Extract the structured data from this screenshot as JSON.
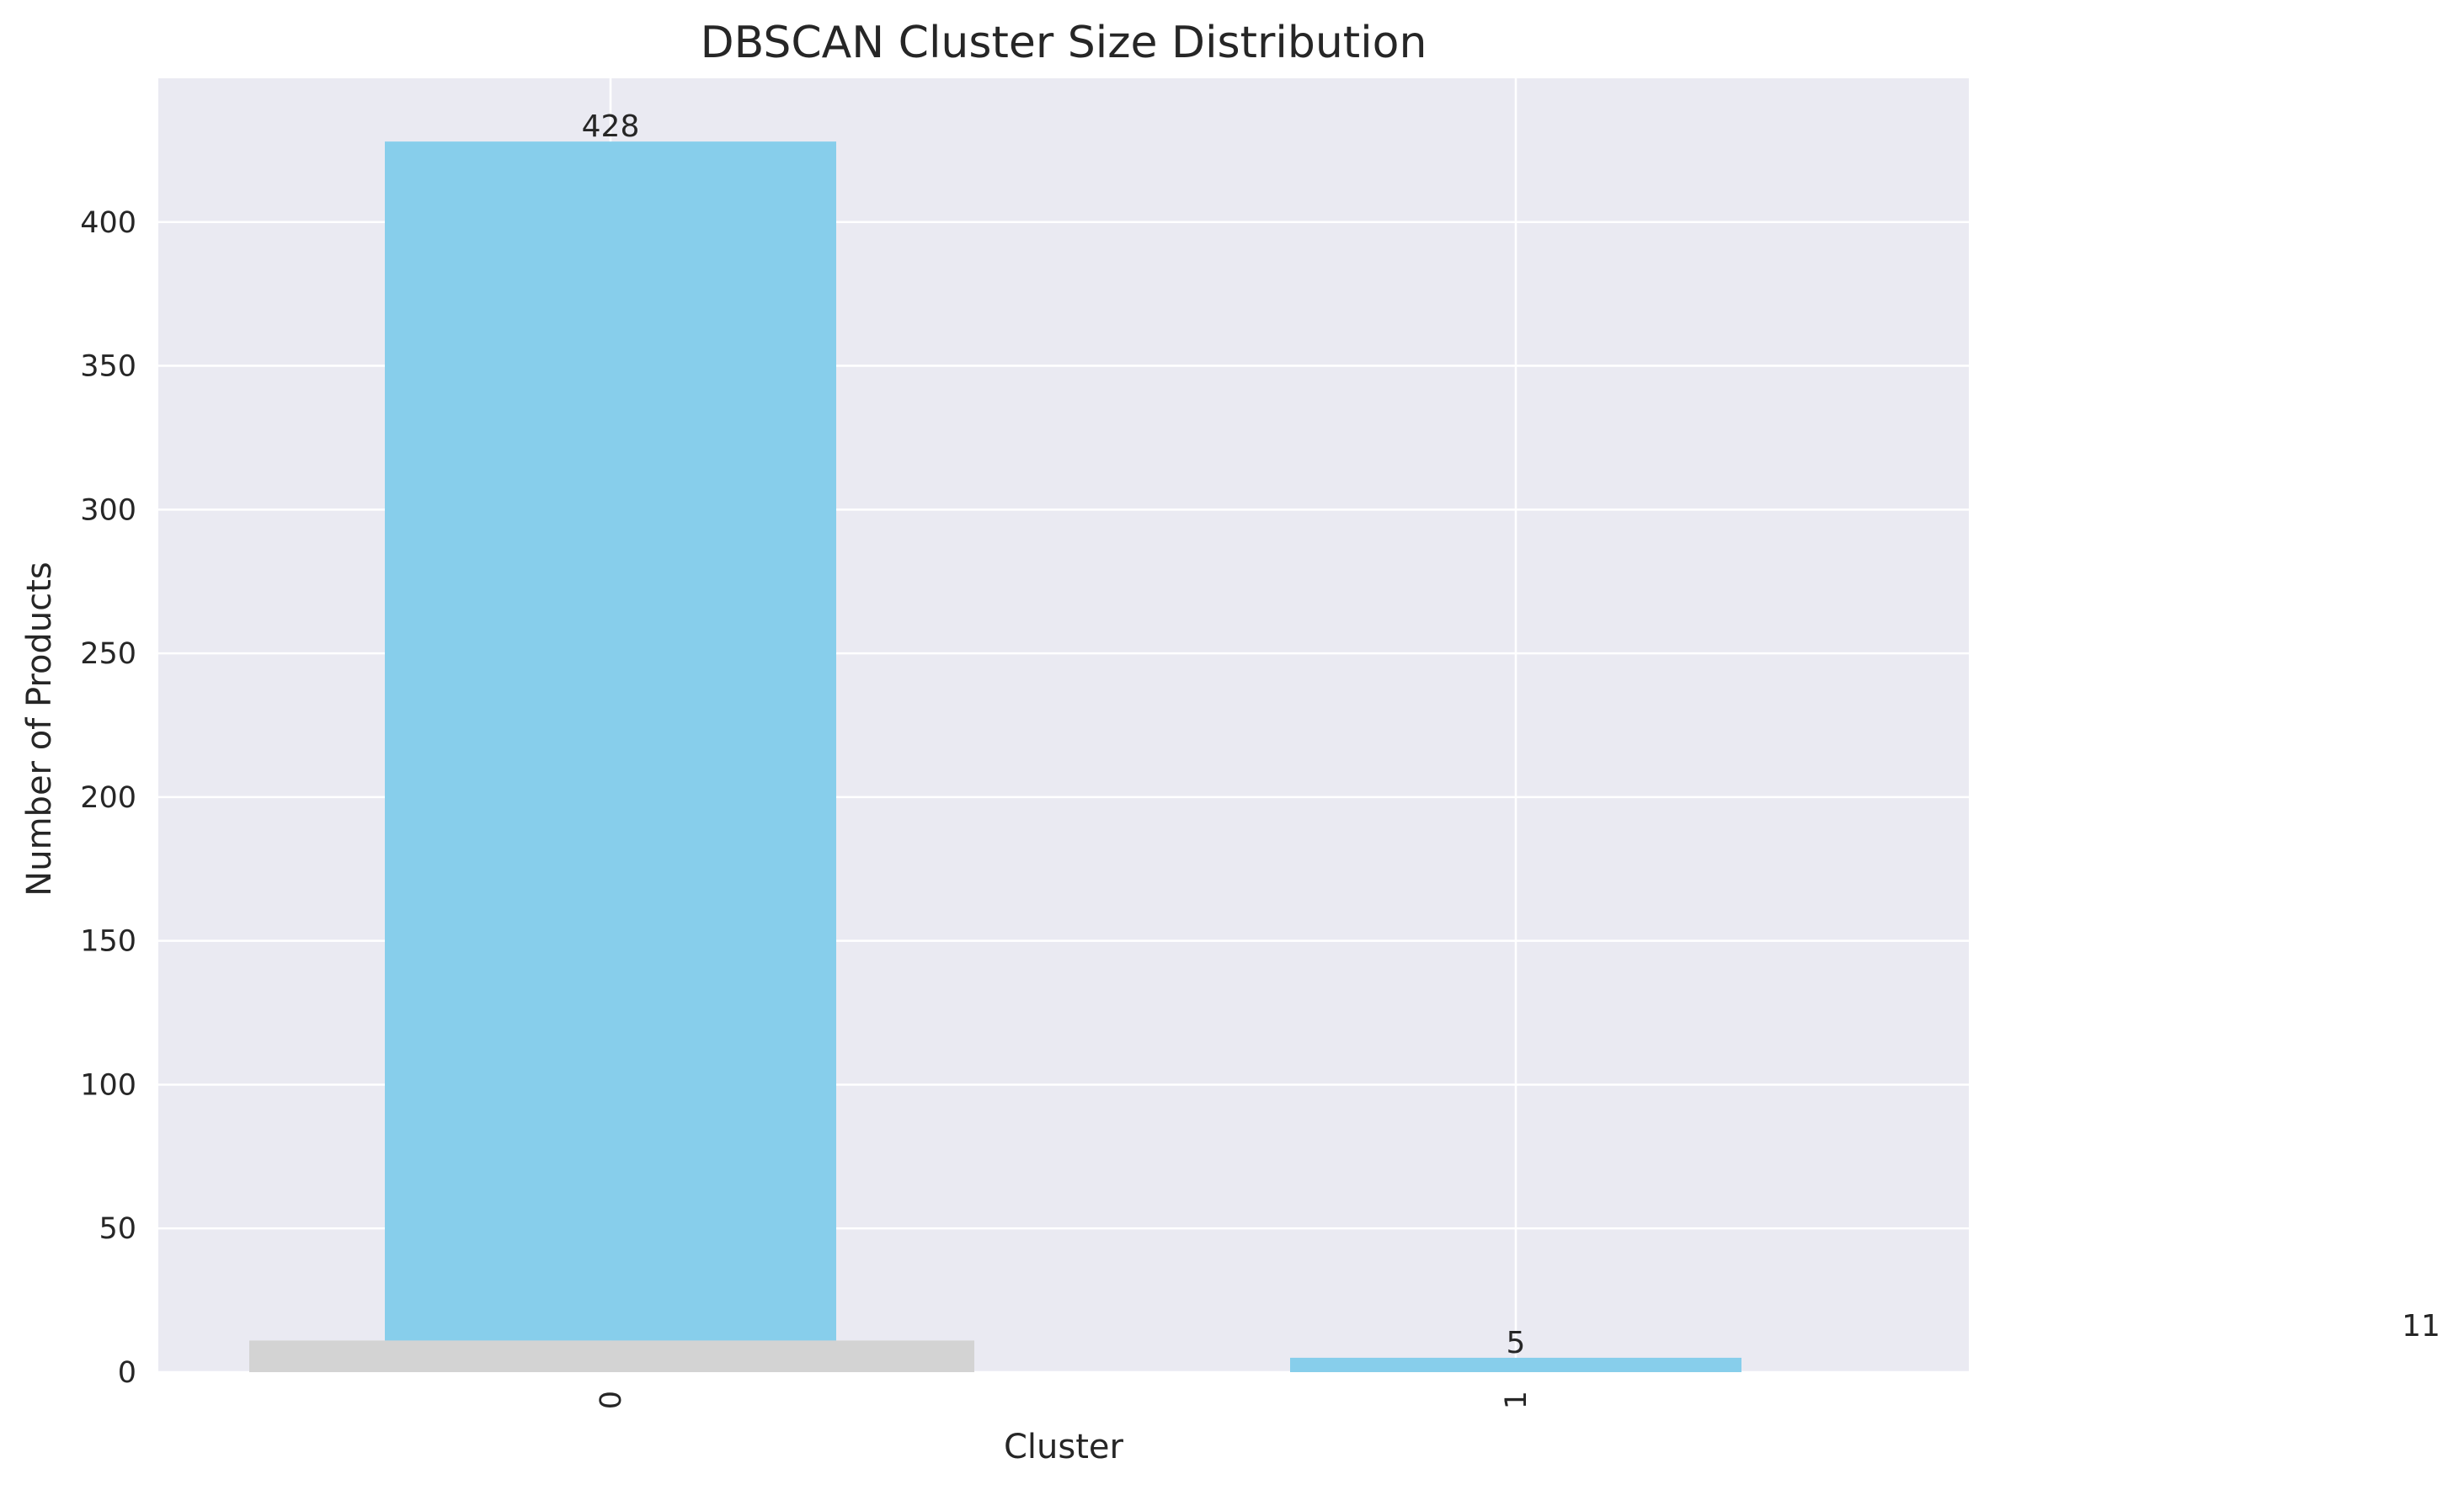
{
  "chart_data": {
    "type": "bar",
    "title": "DBSCAN Cluster Size Distribution",
    "xlabel": "Cluster",
    "ylabel": "Number of Products",
    "categories": [
      "0",
      "1"
    ],
    "values": [
      428,
      5
    ],
    "bar_color": "#87ceeb",
    "background_bar": {
      "value": 11,
      "color": "#d3d3d3"
    },
    "stray_label": "11",
    "ylim": [
      0,
      450
    ],
    "yticks": [
      0,
      50,
      100,
      150,
      200,
      250,
      300,
      350,
      400
    ],
    "ytick_labels": [
      "0",
      "50",
      "100",
      "150",
      "200",
      "250",
      "300",
      "350",
      "400"
    ],
    "grid": true,
    "plot_background": "#eaeaf2",
    "grid_color": "#ffffff"
  }
}
